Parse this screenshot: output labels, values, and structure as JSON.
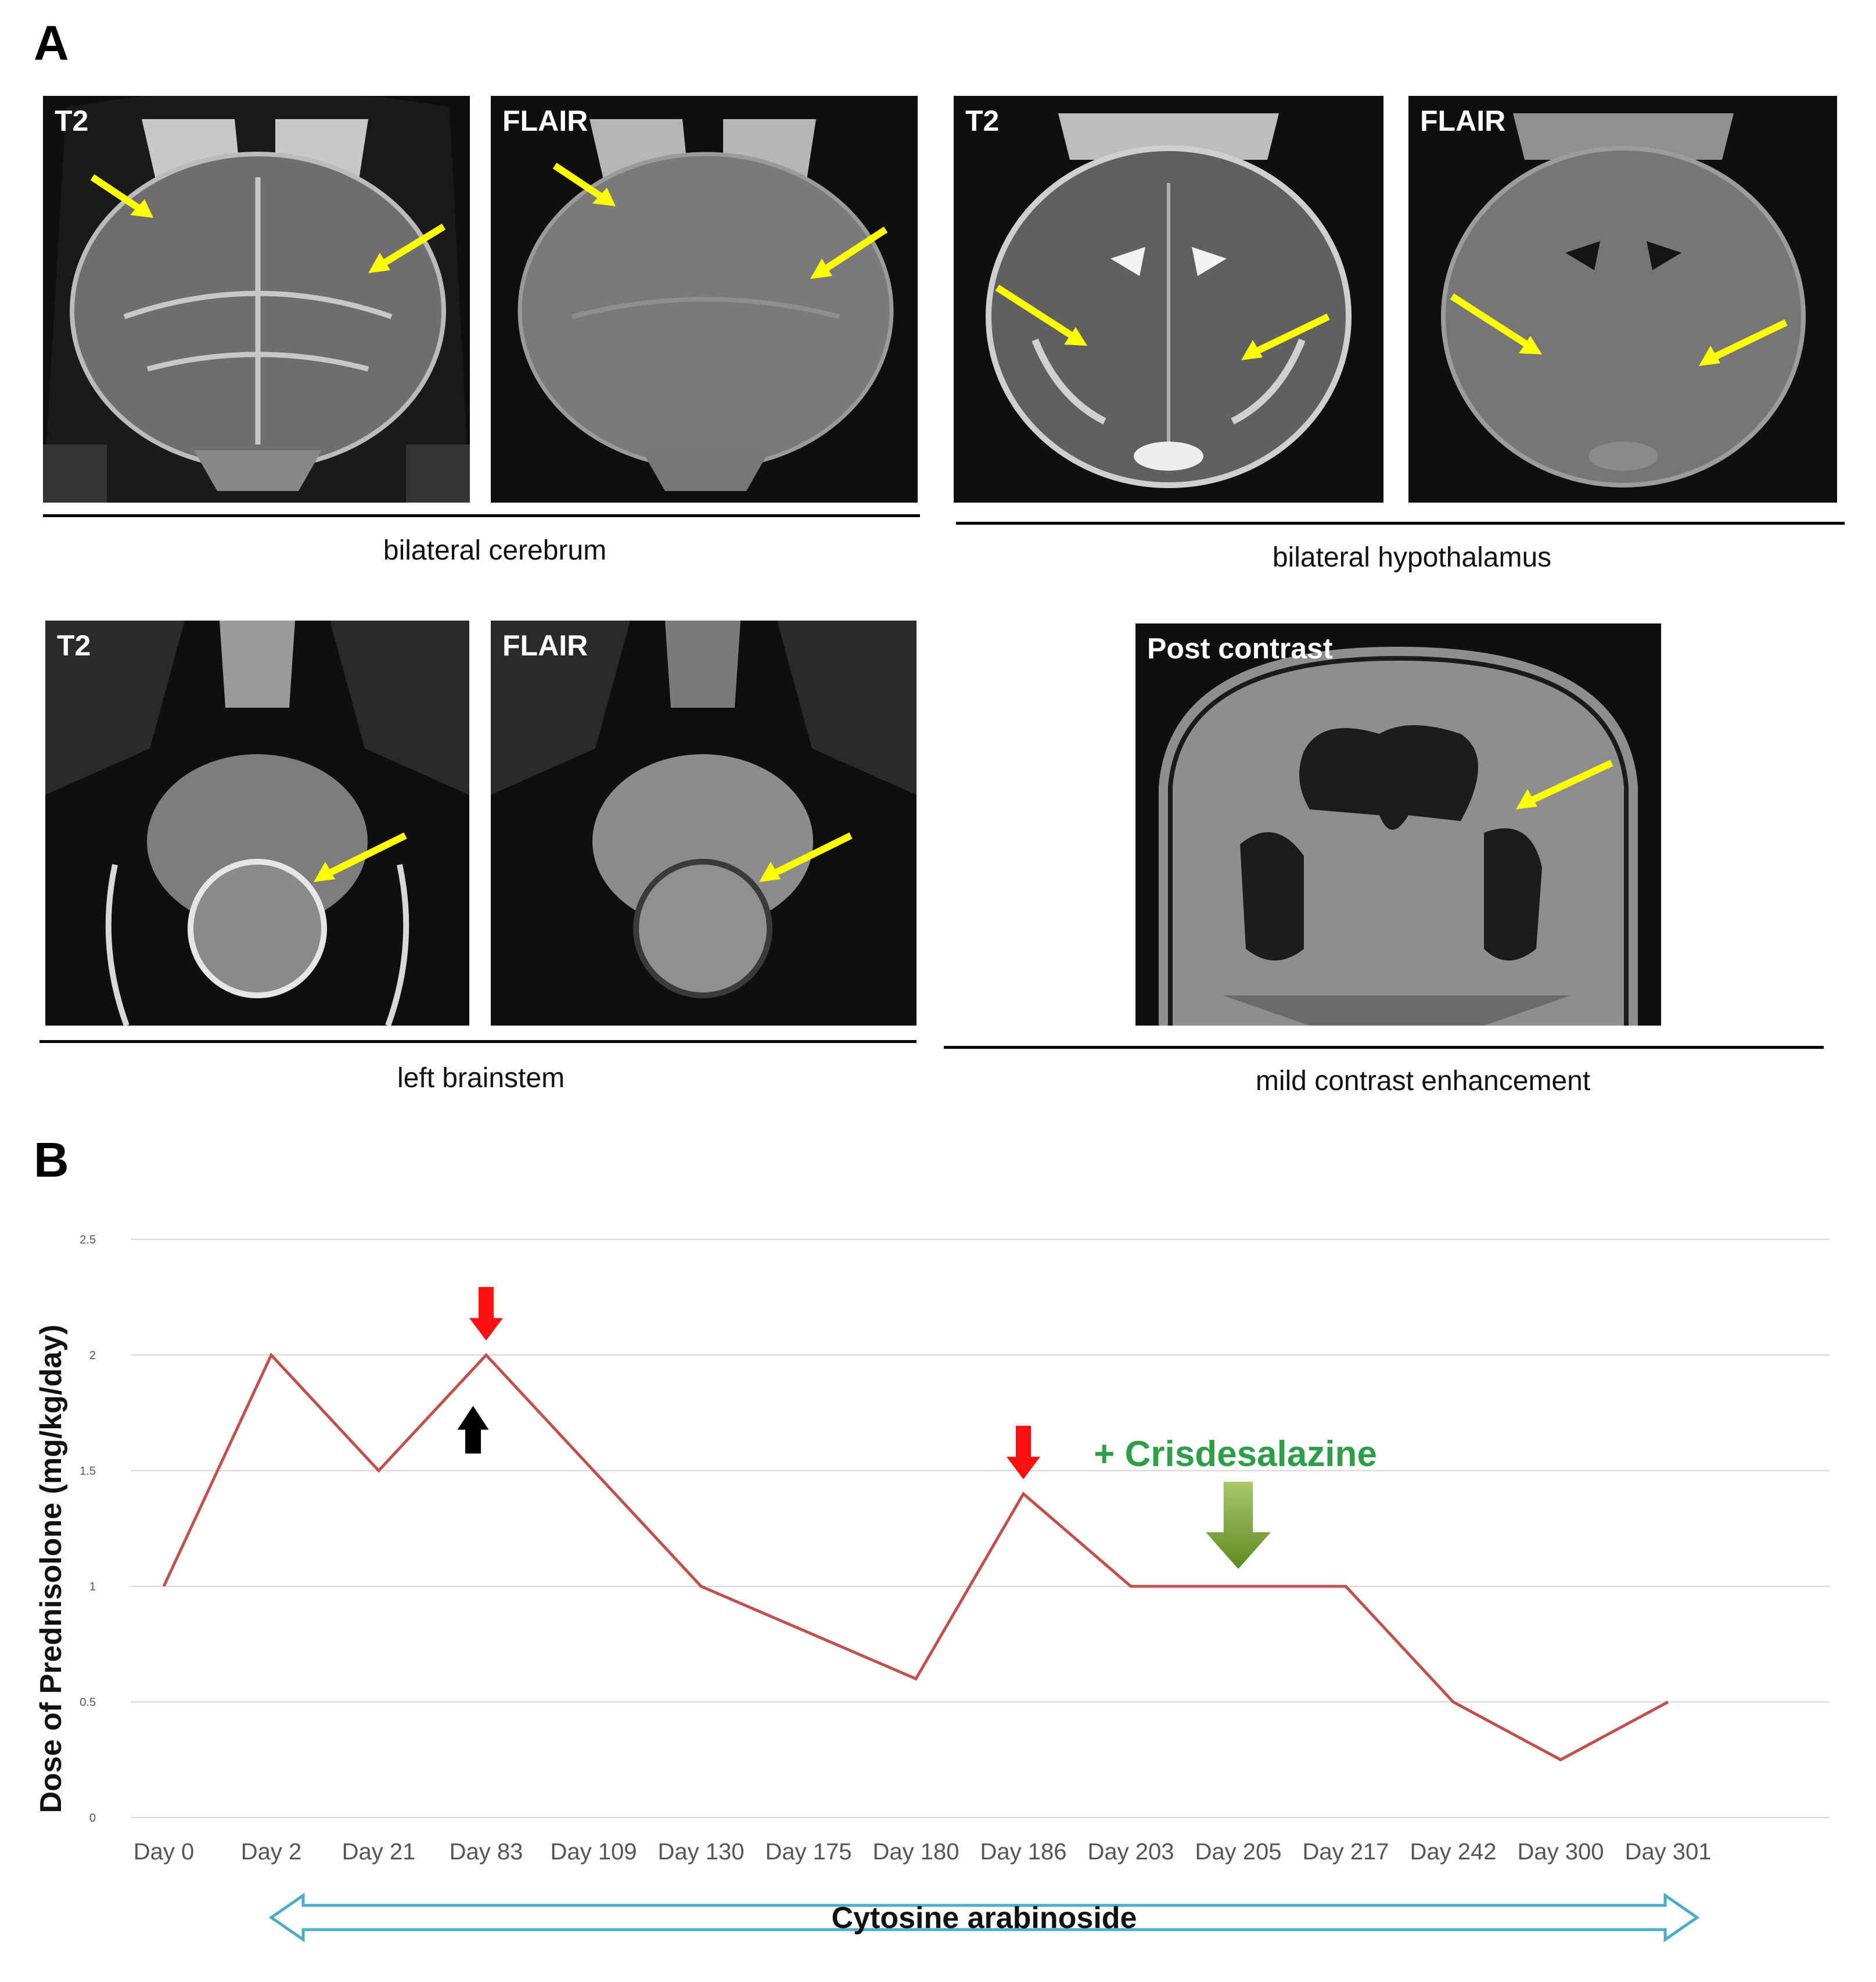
{
  "panel_a": {
    "letter": "A",
    "groups": [
      {
        "caption": "bilateral cerebrum",
        "images": [
          {
            "label": "T2"
          },
          {
            "label": "FLAIR"
          }
        ]
      },
      {
        "caption": "bilateral hypothalamus",
        "images": [
          {
            "label": "T2"
          },
          {
            "label": "FLAIR"
          }
        ]
      },
      {
        "caption": "left brainstem",
        "images": [
          {
            "label": "T2"
          },
          {
            "label": "FLAIR"
          }
        ]
      },
      {
        "caption": "mild contrast enhancement",
        "images": [
          {
            "label": "Post contrast"
          }
        ]
      }
    ],
    "arrow_color": "#ffff00"
  },
  "panel_b": {
    "letter": "B"
  },
  "chart_data": {
    "type": "line",
    "title": "",
    "xlabel": "",
    "ylabel": "Dose of Prednisolone (mg/kg/day)",
    "categories": [
      "Day 0",
      "Day 2",
      "Day 21",
      "Day 83",
      "Day 109",
      "Day 130",
      "Day 175",
      "Day 180",
      "Day 186",
      "Day 203",
      "Day 205",
      "Day 217",
      "Day 242",
      "Day 300",
      "Day 301"
    ],
    "series": [
      {
        "values": [
          1,
          2,
          1.5,
          2,
          1.5,
          1,
          0.8,
          0.6,
          1.4,
          1,
          1,
          1,
          0.5,
          0.25,
          0.5
        ],
        "color": "#c0504d"
      }
    ],
    "ylim": [
      0,
      2.5
    ],
    "yticks": [
      "0",
      "0.5",
      "1",
      "1.5",
      "2",
      "2.5"
    ],
    "grid": true,
    "annotations": [
      {
        "type": "red-down-arrow",
        "at": "Day 83"
      },
      {
        "type": "black-up-arrow",
        "between": [
          "Day 21",
          "Day 83"
        ]
      },
      {
        "type": "red-down-arrow",
        "at": "Day 186"
      },
      {
        "type": "green-down-arrow",
        "at": "Day 205",
        "text": "+ Crisdesalazine"
      }
    ],
    "range_band": {
      "label": "Cytosine arabinoside",
      "from": "Day 2",
      "to": "Day 301"
    }
  }
}
